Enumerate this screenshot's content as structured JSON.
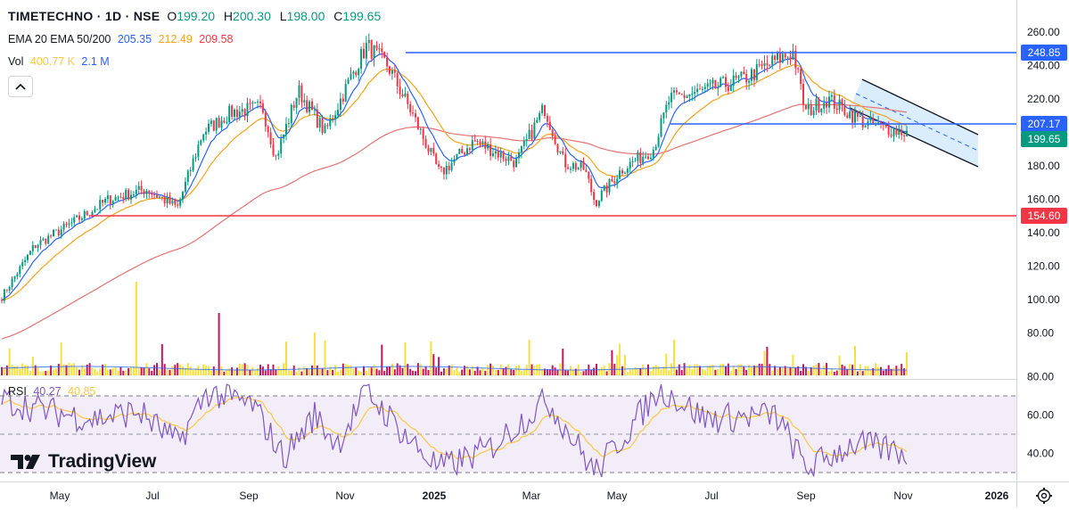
{
  "header": {
    "symbol": "TIMETECHNO · 1D · NSE",
    "o_label": "O",
    "o_value": "199.20",
    "h_label": "H",
    "h_value": "200.30",
    "l_label": "L",
    "l_value": "198.00",
    "c_label": "C",
    "c_value": "199.65"
  },
  "ema_legend": {
    "label": "EMA 20 EMA 50/200",
    "ema20": "205.35",
    "ema50": "212.49",
    "ema200": "209.58"
  },
  "vol_legend": {
    "label": "Vol",
    "value": "400.77 K",
    "ma": "2.1 M"
  },
  "rsi_legend": {
    "label": "RSI",
    "value": "40.27",
    "ma": "40.85"
  },
  "price_tags": {
    "resistance": "248.85",
    "mid_level": "207.17",
    "last_price": "199.65",
    "support": "154.60"
  },
  "x_axis": {
    "labels": [
      "May",
      "Jul",
      "Sep",
      "Nov",
      "2025",
      "Mar",
      "May",
      "Jul",
      "Sep",
      "Nov",
      "2026"
    ]
  },
  "logo": {
    "text": "TradingView"
  },
  "icons": {
    "settings": "settings-gear-icon",
    "collapse": "chevron-up-icon"
  },
  "colors": {
    "up": "#089981",
    "down": "#f23645",
    "ema20": "#2962ff",
    "ema50": "#f7a21b",
    "ema200": "#e57373",
    "hline_blue": "#2962ff",
    "hline_red": "#f23645",
    "rsi": "#7e57c2",
    "rsi_ma": "#f7c948",
    "volume_up": "#f7e03b",
    "volume_down": "#c2185b"
  },
  "chart_data": [
    {
      "type": "candlestick",
      "title": "TIMETECHNO · 1D · NSE",
      "ylim": [
        90,
        265
      ],
      "y_ticks": [
        80.0,
        100.0,
        120.0,
        140.0,
        160.0,
        180.0,
        200.0,
        220.0,
        240.0,
        260.0
      ],
      "approx_closes": [
        {
          "x": "2024-04-08",
          "y": 100
        },
        {
          "x": "2024-05-01",
          "y": 132
        },
        {
          "x": "2024-05-25",
          "y": 145
        },
        {
          "x": "2024-06-20",
          "y": 160
        },
        {
          "x": "2024-07-15",
          "y": 166
        },
        {
          "x": "2024-08-05",
          "y": 155
        },
        {
          "x": "2024-08-22",
          "y": 200
        },
        {
          "x": "2024-09-10",
          "y": 212
        },
        {
          "x": "2024-10-01",
          "y": 215
        },
        {
          "x": "2024-10-10",
          "y": 185
        },
        {
          "x": "2024-10-25",
          "y": 225
        },
        {
          "x": "2024-11-12",
          "y": 200
        },
        {
          "x": "2024-12-02",
          "y": 238
        },
        {
          "x": "2024-12-10",
          "y": 252
        },
        {
          "x": "2024-12-24",
          "y": 240
        },
        {
          "x": "2025-01-10",
          "y": 210
        },
        {
          "x": "2025-01-28",
          "y": 175
        },
        {
          "x": "2025-02-20",
          "y": 195
        },
        {
          "x": "2025-03-20",
          "y": 182
        },
        {
          "x": "2025-04-08",
          "y": 215
        },
        {
          "x": "2025-04-21",
          "y": 182
        },
        {
          "x": "2025-05-05",
          "y": 178
        },
        {
          "x": "2025-05-12",
          "y": 158
        },
        {
          "x": "2025-05-30",
          "y": 178
        },
        {
          "x": "2025-06-20",
          "y": 190
        },
        {
          "x": "2025-07-01",
          "y": 220
        },
        {
          "x": "2025-07-25",
          "y": 225
        },
        {
          "x": "2025-08-20",
          "y": 232
        },
        {
          "x": "2025-09-10",
          "y": 243
        },
        {
          "x": "2025-09-22",
          "y": 248
        },
        {
          "x": "2025-09-30",
          "y": 212
        },
        {
          "x": "2025-10-15",
          "y": 220
        },
        {
          "x": "2025-11-10",
          "y": 205
        },
        {
          "x": "2025-12-08",
          "y": 199.65
        }
      ],
      "horizontal_levels": [
        {
          "value": 248.85,
          "color": "#2962ff"
        },
        {
          "value": 207.17,
          "color": "#2962ff"
        },
        {
          "value": 154.6,
          "color": "#f23645"
        }
      ],
      "indicators": [
        "EMA 20",
        "EMA 50",
        "EMA 200"
      ],
      "channel": {
        "type": "descending",
        "start": "2025-10-01",
        "end": "2025-12-20"
      }
    },
    {
      "type": "line",
      "title": "RSI",
      "ylim": [
        25,
        78
      ],
      "y_ticks": [
        40.0,
        60.0,
        80.0
      ],
      "band": [
        30,
        70
      ],
      "approx_values": [
        {
          "x": "2024-04-10",
          "y": 68
        },
        {
          "x": "2024-05-10",
          "y": 62
        },
        {
          "x": "2024-06-10",
          "y": 58
        },
        {
          "x": "2024-07-10",
          "y": 62
        },
        {
          "x": "2024-08-05",
          "y": 45
        },
        {
          "x": "2024-08-25",
          "y": 72
        },
        {
          "x": "2024-09-25",
          "y": 65
        },
        {
          "x": "2024-10-15",
          "y": 38
        },
        {
          "x": "2024-11-05",
          "y": 60
        },
        {
          "x": "2024-11-20",
          "y": 45
        },
        {
          "x": "2024-12-10",
          "y": 72
        },
        {
          "x": "2025-01-10",
          "y": 45
        },
        {
          "x": "2025-01-28",
          "y": 32
        },
        {
          "x": "2025-03-01",
          "y": 42
        },
        {
          "x": "2025-04-10",
          "y": 68
        },
        {
          "x": "2025-05-12",
          "y": 30
        },
        {
          "x": "2025-06-25",
          "y": 74
        },
        {
          "x": "2025-07-25",
          "y": 58
        },
        {
          "x": "2025-09-10",
          "y": 60
        },
        {
          "x": "2025-10-01",
          "y": 32
        },
        {
          "x": "2025-11-01",
          "y": 45
        },
        {
          "x": "2025-12-08",
          "y": 40.27
        }
      ]
    }
  ]
}
